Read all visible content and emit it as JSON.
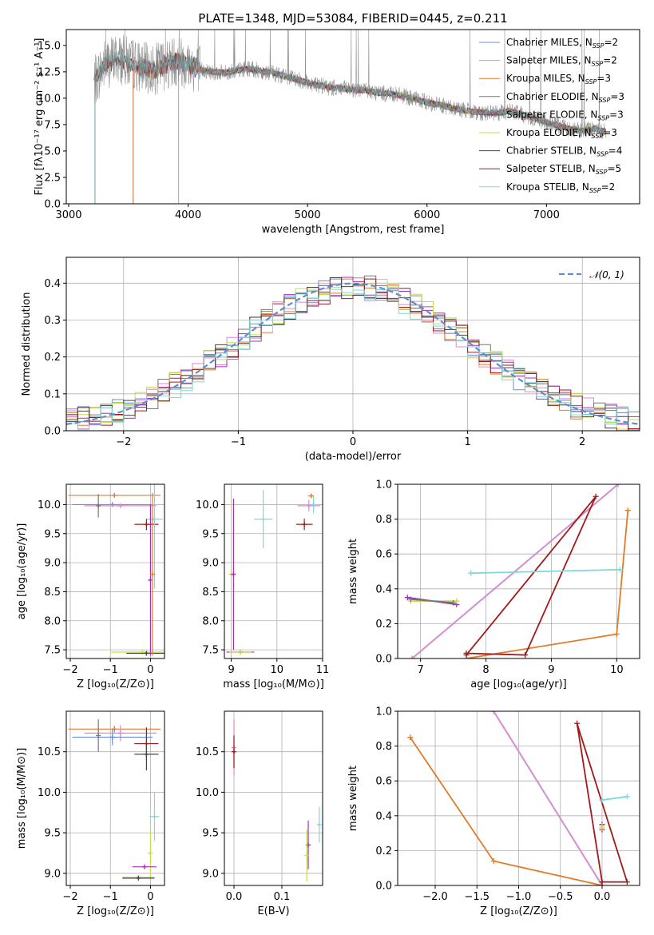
{
  "colors": {
    "Chabrier MILES": "#6a8fd6",
    "Salpeter MILES": "#d98ccf",
    "Kroupa MILES": "#e07b2a",
    "Chabrier ELODIE": "#777777",
    "Salpeter ELODIE": "#a62fb8",
    "Kroupa ELODIE": "#c6dd4a",
    "Chabrier STELIB": "#444444",
    "Salpeter STELIB": "#a11a1a",
    "Kroupa STELIB": "#7dd9d9"
  },
  "chart_data": [
    {
      "id": "spectrum",
      "type": "line",
      "title": "PLATE=1348, MJD=53084, FIBERID=0445, z=0.211",
      "xlabel": "wavelength [Angstrom, rest frame]",
      "ylabel": "Flux [fλ10⁻¹⁷ erg cm⁻² s⁻¹ A⁻¹]",
      "xlim": [
        2980,
        7780
      ],
      "ylim": [
        0,
        16.5
      ],
      "xticks": [
        3000,
        4000,
        5000,
        6000,
        7000
      ],
      "yticks": [
        0.0,
        2.5,
        5.0,
        7.5,
        10.0,
        12.5,
        15.0
      ],
      "xtick_labels": [
        "3000",
        "4000",
        "5000",
        "6000",
        "7000"
      ],
      "ytick_labels": [
        "0.0",
        "2.5",
        "5.0",
        "7.5",
        "10.0",
        "12.5",
        "15.0"
      ],
      "legend": [
        {
          "model": "Chabrier MILES",
          "label": "Chabrier MILES, N",
          "sub": "SSP",
          "tail": "=2"
        },
        {
          "model": "Salpeter MILES",
          "label": "Salpeter MILES, N",
          "sub": "SSP",
          "tail": "=2"
        },
        {
          "model": "Kroupa MILES",
          "label": "Kroupa MILES, N",
          "sub": "SSP",
          "tail": "=3"
        },
        {
          "model": "Chabrier ELODIE",
          "label": "Chabrier ELODIE, N",
          "sub": "SSP",
          "tail": "=3"
        },
        {
          "model": "Salpeter ELODIE",
          "label": "Salpeter ELODIE, N",
          "sub": "SSP",
          "tail": "=3"
        },
        {
          "model": "Kroupa ELODIE",
          "label": "Kroupa ELODIE, N",
          "sub": "SSP",
          "tail": "=3"
        },
        {
          "model": "Chabrier STELIB",
          "label": "Chabrier STELIB, N",
          "sub": "SSP",
          "tail": "=4"
        },
        {
          "model": "Salpeter STELIB",
          "label": "Salpeter STELIB, N",
          "sub": "SSP",
          "tail": "=5"
        },
        {
          "model": "Kroupa STELIB",
          "label": "Kroupa STELIB, N",
          "sub": "SSP",
          "tail": "=2"
        }
      ],
      "legend_position": "top-right",
      "continuum": [
        [
          3200,
          11.2
        ],
        [
          3300,
          13.2
        ],
        [
          3400,
          13.8
        ],
        [
          3500,
          13.4
        ],
        [
          3600,
          13.0
        ],
        [
          3700,
          12.6
        ],
        [
          3800,
          13.2
        ],
        [
          3900,
          13.6
        ],
        [
          4000,
          13.3
        ],
        [
          4100,
          12.7
        ],
        [
          4200,
          12.5
        ],
        [
          4300,
          12.4
        ],
        [
          4400,
          12.6
        ],
        [
          4500,
          12.8
        ],
        [
          4600,
          12.6
        ],
        [
          4700,
          12.4
        ],
        [
          4800,
          12.1
        ],
        [
          4900,
          11.8
        ],
        [
          5000,
          11.5
        ],
        [
          5100,
          11.2
        ],
        [
          5200,
          11.0
        ],
        [
          5300,
          10.9
        ],
        [
          5400,
          10.8
        ],
        [
          5500,
          10.7
        ],
        [
          5600,
          10.5
        ],
        [
          5700,
          10.4
        ],
        [
          5800,
          10.2
        ],
        [
          5900,
          9.9
        ],
        [
          6000,
          9.6
        ],
        [
          6100,
          9.4
        ],
        [
          6200,
          9.1
        ],
        [
          6300,
          8.9
        ],
        [
          6400,
          8.7
        ],
        [
          6500,
          8.6
        ],
        [
          6600,
          8.6
        ],
        [
          6700,
          8.8
        ],
        [
          6800,
          8.4
        ],
        [
          6900,
          8.1
        ],
        [
          7000,
          7.7
        ],
        [
          7100,
          7.4
        ],
        [
          7200,
          7.1
        ],
        [
          7300,
          6.9
        ],
        [
          7400,
          7.1
        ],
        [
          7500,
          6.8
        ]
      ],
      "model_starts": {
        "Chabrier MILES": 3540,
        "Salpeter MILES": 3540,
        "Kroupa MILES": 3540,
        "Chabrier ELODIE": 3920,
        "Salpeter ELODIE": 3920,
        "Kroupa ELODIE": 3920,
        "Chabrier STELIB": 3220,
        "Salpeter STELIB": 3220,
        "Kroupa STELIB": 3220
      }
    },
    {
      "id": "residuals",
      "type": "line",
      "xlabel": "(data-model)/error",
      "ylabel": "Normed distribution",
      "xlim": [
        -2.5,
        2.5
      ],
      "ylim": [
        0,
        0.47
      ],
      "xticks": [
        -2,
        -1,
        0,
        1,
        2
      ],
      "xtick_labels": [
        "−2",
        "−1",
        "0",
        "1",
        "2"
      ],
      "yticks": [
        0.0,
        0.1,
        0.2,
        0.3,
        0.4
      ],
      "ytick_labels": [
        "0.0",
        "0.1",
        "0.2",
        "0.3",
        "0.4"
      ],
      "legend": "𝒩(0, 1)",
      "legend_position": "top-right",
      "gaussian": {
        "mean": 0,
        "sigma": 1
      }
    },
    {
      "id": "age_vs_Z",
      "type": "scatter",
      "xlabel": "Z [log₁₀(Z/Z⊙)]",
      "ylabel": "age  [log₁₀(age/yr)]",
      "xlim": [
        -2.1,
        0.35
      ],
      "ylim": [
        7.35,
        10.35
      ],
      "xticks": [
        -2,
        -1,
        0
      ],
      "xtick_labels": [
        "−2",
        "−1",
        "0"
      ],
      "yticks": [
        7.5,
        8.0,
        8.5,
        9.0,
        9.5,
        10.0
      ],
      "ytick_labels": [
        "7.5",
        "8.0",
        "8.5",
        "9.0",
        "9.5",
        "10.0"
      ],
      "points": [
        {
          "model": "Kroupa MILES",
          "x": -0.9,
          "xerr": 1.15,
          "y": 10.16,
          "yerr": 0.0
        },
        {
          "model": "Chabrier MILES",
          "x": -0.95,
          "xerr": 1.0,
          "y": 10.0,
          "yerr": 0.0
        },
        {
          "model": "Salpeter MILES",
          "x": -0.75,
          "xerr": 0.9,
          "y": 9.98,
          "yerr": 0.0
        },
        {
          "model": "Chabrier ELODIE",
          "x": -1.3,
          "xerr": 0.0,
          "y": 9.98,
          "yerr": 0.2
        },
        {
          "model": "Salpeter STELIB",
          "x": -0.1,
          "xerr": 0.3,
          "y": 9.66,
          "yerr": 0.1
        },
        {
          "model": "Kroupa STELIB",
          "x": 0.1,
          "xerr": 0.2,
          "y": 9.75,
          "yerr": 1.2
        },
        {
          "model": "Kroupa ELODIE",
          "x": -0.2,
          "xerr": 0.8,
          "y": 7.46,
          "yerr": 0.0
        },
        {
          "model": "Chabrier STELIB",
          "x": -0.1,
          "xerr": 0.5,
          "y": 7.44,
          "yerr": 0.0
        },
        {
          "model": "Salpeter ELODIE",
          "x": 0.0,
          "xerr": 0.0,
          "y": 8.7,
          "yerr": 1.3
        },
        {
          "model": "Kroupa MILES",
          "x": 0.05,
          "xerr": 0.0,
          "y": 8.8,
          "yerr": 1.4
        }
      ]
    },
    {
      "id": "age_vs_mass",
      "type": "scatter",
      "xlabel": "mass [log₁₀(M/M⊙)]",
      "ylabel": "",
      "xlim": [
        8.85,
        11.0
      ],
      "ylim": [
        7.35,
        10.35
      ],
      "xticks": [
        9,
        10,
        11
      ],
      "xtick_labels": [
        "9",
        "10",
        "11"
      ],
      "yticks": [
        7.5,
        8.0,
        8.5,
        9.0,
        9.5,
        10.0
      ],
      "ytick_labels": [
        "7.5",
        "8.0",
        "8.5",
        "9.0",
        "9.5",
        "10.0"
      ],
      "points": [
        {
          "model": "Kroupa MILES",
          "x": 10.75,
          "xerr": 0.06,
          "y": 10.15,
          "yerr": 0.0
        },
        {
          "model": "Salpeter MILES",
          "x": 10.7,
          "xerr": 0.25,
          "y": 9.98,
          "yerr": 0.1
        },
        {
          "model": "Kroupa STELIB",
          "x": 10.8,
          "xerr": 0.05,
          "y": 10.0,
          "yerr": 0.15
        },
        {
          "model": "Salpeter STELIB",
          "x": 10.6,
          "xerr": 0.18,
          "y": 9.66,
          "yerr": 0.1
        },
        {
          "model": "Kroupa STELIB",
          "x": 9.7,
          "xerr": 0.2,
          "y": 9.75,
          "yerr": 0.5
        },
        {
          "model": "Kroupa ELODIE",
          "x": 9.0,
          "xerr": 0.04,
          "y": 8.8,
          "yerr": 1.3
        },
        {
          "model": "Salpeter ELODIE",
          "x": 9.05,
          "xerr": 0.0,
          "y": 8.8,
          "yerr": 1.3
        },
        {
          "model": "Salpeter ELODIE",
          "x": 9.2,
          "xerr": 0.3,
          "y": 7.46,
          "yerr": 0.0
        },
        {
          "model": "Kroupa ELODIE",
          "x": 9.2,
          "xerr": 0.25,
          "y": 7.46,
          "yerr": 0.0
        }
      ]
    },
    {
      "id": "weight_vs_age",
      "type": "line",
      "xlabel": "age  [log₁₀(age/yr)]",
      "ylabel": "mass weight",
      "xlim": [
        6.65,
        10.35
      ],
      "ylim": [
        0,
        1.0
      ],
      "xticks": [
        7,
        8,
        9,
        10
      ],
      "xtick_labels": [
        "7",
        "8",
        "9",
        "10"
      ],
      "yticks": [
        0.0,
        0.2,
        0.4,
        0.6,
        0.8,
        1.0
      ],
      "ytick_labels": [
        "0.0",
        "0.2",
        "0.4",
        "0.6",
        "0.8",
        "1.0"
      ],
      "series": [
        {
          "model": "Chabrier MILES",
          "x": [
            6.87,
            10.02
          ],
          "y": [
            0.0,
            1.0
          ]
        },
        {
          "model": "Salpeter MILES",
          "x": [
            6.87,
            10.02
          ],
          "y": [
            0.0,
            1.0
          ]
        },
        {
          "model": "Kroupa MILES",
          "x": [
            7.7,
            10.0,
            10.17
          ],
          "y": [
            0.0,
            0.14,
            0.85
          ]
        },
        {
          "model": "Salpeter STELIB",
          "x": [
            7.7,
            8.6,
            9.68,
            7.7
          ],
          "y": [
            0.03,
            0.02,
            0.93,
            0.02
          ]
        },
        {
          "model": "Kroupa STELIB",
          "x": [
            7.77,
            10.05
          ],
          "y": [
            0.49,
            0.51
          ]
        },
        {
          "model": "Salpeter ELODIE",
          "x": [
            6.8,
            7.55
          ],
          "y": [
            0.35,
            0.31
          ]
        },
        {
          "model": "Kroupa ELODIE",
          "x": [
            6.85,
            7.55
          ],
          "y": [
            0.33,
            0.33
          ]
        },
        {
          "model": "Chabrier ELODIE",
          "x": [
            6.85,
            7.5
          ],
          "y": [
            0.34,
            0.32
          ]
        }
      ]
    },
    {
      "id": "mass_vs_Z",
      "type": "scatter",
      "xlabel": "Z [log₁₀(Z/Z⊙)]",
      "ylabel": "mass [log₁₀(M/M⊙)]",
      "xlim": [
        -2.1,
        0.35
      ],
      "ylim": [
        8.85,
        11.0
      ],
      "xticks": [
        -2,
        -1,
        0
      ],
      "xtick_labels": [
        "−2",
        "−1",
        "0"
      ],
      "yticks": [
        9.0,
        9.5,
        10.0,
        10.5
      ],
      "ytick_labels": [
        "9.0",
        "9.5",
        "10.0",
        "10.5"
      ],
      "points": [
        {
          "model": "Kroupa MILES",
          "x": -0.9,
          "xerr": 1.15,
          "y": 10.78,
          "yerr": 0.04
        },
        {
          "model": "Salpeter MILES",
          "x": -0.75,
          "xerr": 0.9,
          "y": 10.73,
          "yerr": 0.1
        },
        {
          "model": "Chabrier MILES",
          "x": -0.95,
          "xerr": 1.0,
          "y": 10.68,
          "yerr": 0.1
        },
        {
          "model": "Chabrier ELODIE",
          "x": -1.3,
          "xerr": 0.0,
          "y": 10.7,
          "yerr": 0.2
        },
        {
          "model": "Salpeter STELIB",
          "x": -0.1,
          "xerr": 0.3,
          "y": 10.6,
          "yerr": 0.2
        },
        {
          "model": "Chabrier STELIB",
          "x": -0.1,
          "xerr": 0.3,
          "y": 10.47,
          "yerr": 0.2
        },
        {
          "model": "Kroupa STELIB",
          "x": 0.1,
          "xerr": 0.12,
          "y": 9.7,
          "yerr": 0.3
        },
        {
          "model": "Kroupa ELODIE",
          "x": 0.0,
          "xerr": 0.0,
          "y": 9.25,
          "yerr": 0.3
        },
        {
          "model": "Salpeter ELODIE",
          "x": -0.15,
          "xerr": 0.3,
          "y": 9.08,
          "yerr": 0.0
        },
        {
          "model": "Kroupa ELODIE",
          "x": -0.3,
          "xerr": 0.4,
          "y": 8.95,
          "yerr": 0.0
        },
        {
          "model": "Chabrier STELIB",
          "x": -0.3,
          "xerr": 0.4,
          "y": 8.94,
          "yerr": 0.0
        }
      ]
    },
    {
      "id": "mass_vs_ebv",
      "type": "scatter",
      "xlabel": "E(B-V)",
      "ylabel": "",
      "xlim": [
        -0.02,
        0.185
      ],
      "ylim": [
        8.85,
        11.0
      ],
      "xticks": [
        0.0,
        0.1
      ],
      "xtick_labels": [
        "0.0",
        "0.1"
      ],
      "yticks": [
        9.0,
        9.5,
        10.0,
        10.5
      ],
      "ytick_labels": [
        "9.0",
        "9.5",
        "10.0",
        "10.5"
      ],
      "points": [
        {
          "model": "Salpeter MILES",
          "x": 0.0,
          "xerr": 0.0,
          "y": 10.55,
          "yerr": 0.35
        },
        {
          "model": "Salpeter STELIB",
          "x": 0.0,
          "xerr": 0.0,
          "y": 10.5,
          "yerr": 0.2
        },
        {
          "model": "Salpeter ELODIE",
          "x": 0.155,
          "xerr": 0.0,
          "y": 9.35,
          "yerr": 0.3
        },
        {
          "model": "Kroupa ELODIE",
          "x": 0.152,
          "xerr": 0.0,
          "y": 9.22,
          "yerr": 0.32
        },
        {
          "model": "Kroupa STELIB",
          "x": 0.178,
          "xerr": 0.0,
          "y": 9.6,
          "yerr": 0.22
        }
      ]
    },
    {
      "id": "weight_vs_Z",
      "type": "line",
      "xlabel": "Z [log₁₀(Z/Z⊙)]",
      "ylabel": "mass weight",
      "xlim": [
        -2.45,
        0.45
      ],
      "ylim": [
        0,
        1.0
      ],
      "xticks": [
        -2.0,
        -1.5,
        -1.0,
        -0.5,
        0.0
      ],
      "xtick_labels": [
        "−2.0",
        "−1.5",
        "−1.0",
        "−0.5",
        "0.0"
      ],
      "yticks": [
        0.0,
        0.2,
        0.4,
        0.6,
        0.8,
        1.0
      ],
      "ytick_labels": [
        "0.0",
        "0.2",
        "0.4",
        "0.6",
        "0.8",
        "1.0"
      ],
      "series": [
        {
          "model": "Chabrier MILES",
          "x": [
            -1.3,
            0.0
          ],
          "y": [
            1.0,
            0.0
          ]
        },
        {
          "model": "Salpeter MILES",
          "x": [
            -1.3,
            0.0
          ],
          "y": [
            1.0,
            0.0
          ]
        },
        {
          "model": "Kroupa MILES",
          "x": [
            0.0,
            -1.3,
            -2.3
          ],
          "y": [
            0.0,
            0.14,
            0.85
          ]
        },
        {
          "model": "Salpeter STELIB",
          "x": [
            0.0,
            0.3,
            -0.3,
            0.0
          ],
          "y": [
            0.02,
            0.02,
            0.93,
            0.02
          ]
        },
        {
          "model": "Kroupa STELIB",
          "x": [
            0.0,
            0.3
          ],
          "y": [
            0.49,
            0.51
          ]
        },
        {
          "model": "Salpeter ELODIE",
          "x": [
            0.0,
            0.0
          ],
          "y": [
            0.35,
            0.32
          ]
        },
        {
          "model": "Kroupa ELODIE",
          "x": [
            0.0,
            0.0
          ],
          "y": [
            0.34,
            0.33
          ]
        }
      ]
    }
  ]
}
